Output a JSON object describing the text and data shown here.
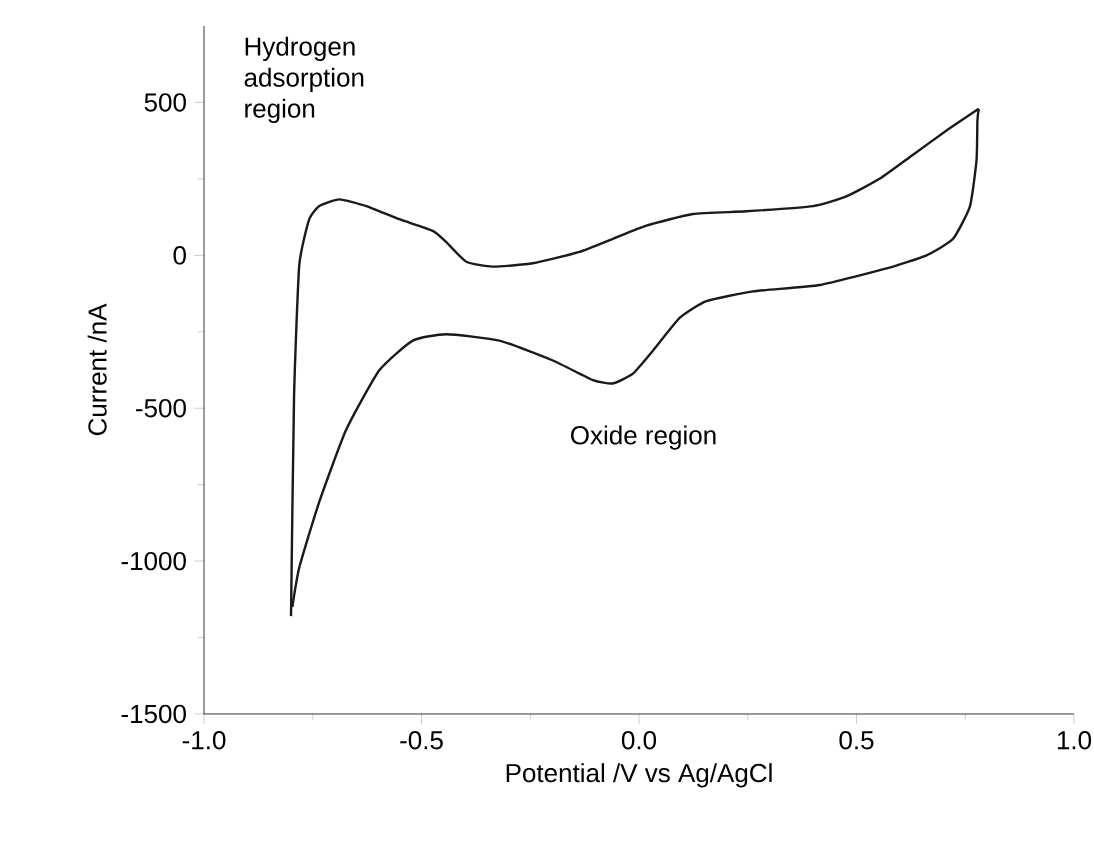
{
  "chart_data": {
    "type": "line",
    "xlabel": "Potential /V vs Ag/AgCl",
    "ylabel": "Current /nA",
    "annotations": [
      "Hydrogen adsorption region",
      "Oxide region"
    ],
    "xlim": [
      -1.0,
      1.0
    ],
    "ylim": [
      -1500,
      750
    ],
    "xticks": [
      {
        "value": -1.0,
        "label": "-1.0"
      },
      {
        "value": -0.5,
        "label": "-0.5"
      },
      {
        "value": 0.0,
        "label": "0.0"
      },
      {
        "value": 0.5,
        "label": "0.5"
      },
      {
        "value": 1.0,
        "label": "1.0"
      }
    ],
    "yticks": [
      -1500,
      -1000,
      -500,
      0,
      500
    ],
    "grid": false,
    "marker": "none",
    "line_style": "solid",
    "series": [
      {
        "color": "#1a1a1a",
        "x": [
          -0.8,
          -0.793,
          -0.781,
          -0.758,
          -0.735,
          -0.689,
          -0.627,
          -0.551,
          -0.474,
          -0.443,
          -0.397,
          -0.336,
          -0.244,
          -0.137,
          -0.06,
          0.017,
          0.124,
          0.247,
          0.4,
          0.477,
          0.554,
          0.63,
          0.707,
          0.781
        ],
        "values": [
          -1180,
          -462,
          -32,
          118,
          161,
          183,
          161,
          118,
          80,
          43,
          -21,
          -37,
          -26,
          11,
          54,
          97,
          135,
          144,
          161,
          193,
          251,
          329,
          408,
          479
        ]
      },
      {
        "color": "#1a1a1a",
        "x": [
          0.781,
          0.778,
          0.776,
          0.761,
          0.722,
          0.661,
          0.569,
          0.416,
          0.262,
          0.155,
          0.094,
          0.032,
          -0.014,
          -0.06,
          -0.106,
          -0.198,
          -0.321,
          -0.443,
          -0.52,
          -0.597,
          -0.673,
          -0.735,
          -0.781,
          -0.797
        ],
        "values": [
          479,
          441,
          312,
          161,
          54,
          0,
          -43,
          -97,
          -118,
          -150,
          -204,
          -312,
          -387,
          -419,
          -408,
          -344,
          -279,
          -258,
          -279,
          -376,
          -570,
          -806,
          -1021,
          -1150
        ]
      }
    ]
  }
}
